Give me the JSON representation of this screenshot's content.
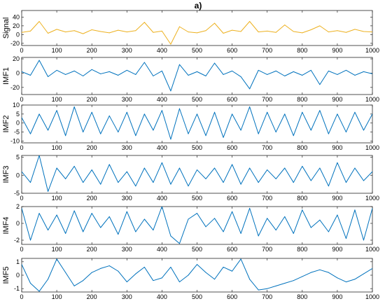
{
  "figure": {
    "title": "a)"
  },
  "chart_data": [
    {
      "type": "line",
      "ylabel": "Signal",
      "color": "#EDB120",
      "xlim": [
        0,
        1000
      ],
      "ylim": [
        -25,
        55
      ],
      "xticks": [
        0,
        100,
        200,
        300,
        400,
        500,
        600,
        700,
        800,
        900,
        1000
      ],
      "yticks": [
        -20,
        0,
        20,
        40
      ],
      "x": [
        0,
        25,
        50,
        75,
        100,
        125,
        150,
        175,
        200,
        225,
        250,
        275,
        300,
        325,
        350,
        375,
        400,
        425,
        450,
        475,
        500,
        525,
        550,
        575,
        600,
        625,
        650,
        675,
        700,
        725,
        750,
        775,
        800,
        825,
        850,
        875,
        900,
        925,
        950,
        975,
        1000
      ],
      "values": [
        5,
        8,
        30,
        3,
        12,
        6,
        9,
        2,
        11,
        7,
        4,
        10,
        6,
        9,
        28,
        5,
        8,
        -22,
        18,
        6,
        4,
        9,
        26,
        3,
        10,
        7,
        30,
        6,
        8,
        5,
        22,
        7,
        4,
        11,
        20,
        6,
        9,
        5,
        12,
        7,
        6
      ],
      "series": [
        {
          "values": [
            5,
            8,
            30,
            3,
            12,
            6,
            9,
            2,
            11,
            7,
            4,
            10,
            6,
            9,
            28,
            5,
            8,
            -22,
            18,
            6,
            4,
            9,
            26,
            3,
            10,
            7,
            30,
            6,
            8,
            5,
            22,
            7,
            4,
            11,
            20,
            6,
            9,
            5,
            12,
            7,
            6
          ]
        }
      ]
    },
    {
      "type": "line",
      "ylabel": "IMF1",
      "color": "#0072BD",
      "xlim": [
        0,
        1000
      ],
      "ylim": [
        -30,
        22
      ],
      "xticks": [
        0,
        100,
        200,
        300,
        400,
        500,
        600,
        700,
        800,
        900,
        1000
      ],
      "yticks": [
        -20,
        0,
        20
      ],
      "x": [
        0,
        25,
        50,
        75,
        100,
        125,
        150,
        175,
        200,
        225,
        250,
        275,
        300,
        325,
        350,
        375,
        400,
        425,
        450,
        475,
        500,
        525,
        550,
        575,
        600,
        625,
        650,
        675,
        700,
        725,
        750,
        775,
        800,
        825,
        850,
        875,
        900,
        925,
        950,
        975,
        1000
      ],
      "values": [
        2,
        -3,
        18,
        -5,
        4,
        -2,
        3,
        -4,
        5,
        -1,
        2,
        -3,
        4,
        -2,
        15,
        -4,
        3,
        -25,
        12,
        -3,
        2,
        -4,
        14,
        -2,
        3,
        -5,
        -22,
        4,
        -2,
        3,
        -4,
        2,
        -3,
        4,
        -16,
        3,
        -2,
        4,
        -3,
        2,
        -1
      ],
      "series": [
        {
          "values": [
            2,
            -3,
            18,
            -5,
            4,
            -2,
            3,
            -4,
            5,
            -1,
            2,
            -3,
            4,
            -2,
            15,
            -4,
            3,
            -25,
            12,
            -3,
            2,
            -4,
            14,
            -2,
            3,
            -5,
            -22,
            4,
            -2,
            3,
            -4,
            2,
            -3,
            4,
            -16,
            3,
            -2,
            4,
            -3,
            2,
            -1
          ]
        }
      ]
    },
    {
      "type": "line",
      "ylabel": "IMF2",
      "color": "#0072BD",
      "xlim": [
        0,
        1000
      ],
      "ylim": [
        -11,
        10
      ],
      "xticks": [
        0,
        100,
        200,
        300,
        400,
        500,
        600,
        700,
        800,
        900,
        1000
      ],
      "yticks": [
        -10,
        -5,
        0,
        5,
        10
      ],
      "x": [
        0,
        25,
        50,
        75,
        100,
        125,
        150,
        175,
        200,
        225,
        250,
        275,
        300,
        325,
        350,
        375,
        400,
        425,
        450,
        475,
        500,
        525,
        550,
        575,
        600,
        625,
        650,
        675,
        700,
        725,
        750,
        775,
        800,
        825,
        850,
        875,
        900,
        925,
        950,
        975,
        1000
      ],
      "values": [
        3,
        -6,
        5,
        -4,
        7,
        -7,
        9,
        -5,
        6,
        -6,
        4,
        -5,
        6,
        -7,
        5,
        -4,
        7,
        -9,
        8,
        -6,
        5,
        -7,
        6,
        -8,
        5,
        -4,
        9,
        -6,
        6,
        -5,
        5,
        -7,
        6,
        -4,
        7,
        -6,
        5,
        -5,
        6,
        -4,
        5
      ],
      "series": [
        {
          "values": [
            3,
            -6,
            5,
            -4,
            7,
            -7,
            9,
            -5,
            6,
            -6,
            4,
            -5,
            6,
            -7,
            5,
            -4,
            7,
            -9,
            8,
            -6,
            5,
            -7,
            6,
            -8,
            5,
            -4,
            9,
            -6,
            6,
            -5,
            5,
            -7,
            6,
            -4,
            7,
            -6,
            5,
            -5,
            6,
            -4,
            5
          ]
        }
      ]
    },
    {
      "type": "line",
      "ylabel": "IMF3",
      "color": "#0072BD",
      "xlim": [
        0,
        1000
      ],
      "ylim": [
        -5,
        5.5
      ],
      "xticks": [
        0,
        100,
        200,
        300,
        400,
        500,
        600,
        700,
        800,
        900,
        1000
      ],
      "yticks": [
        -5,
        0,
        5
      ],
      "x": [
        0,
        25,
        50,
        75,
        100,
        125,
        150,
        175,
        200,
        225,
        250,
        275,
        300,
        325,
        350,
        375,
        400,
        425,
        450,
        475,
        500,
        525,
        550,
        575,
        600,
        625,
        650,
        675,
        700,
        725,
        750,
        775,
        800,
        825,
        850,
        875,
        900,
        925,
        950,
        975,
        1000
      ],
      "values": [
        1,
        -2,
        5.5,
        -4.5,
        2,
        -1,
        2.5,
        -2,
        1.5,
        -2.5,
        3,
        -2,
        1,
        -3,
        2,
        -2,
        3.5,
        -2.5,
        2,
        -3,
        1.5,
        -1,
        2,
        -2,
        3,
        -2.5,
        2,
        -2,
        1.5,
        -1,
        2,
        -2,
        2.5,
        -1.5,
        2,
        -3,
        3.5,
        -2,
        2,
        -1.5,
        1
      ],
      "series": [
        {
          "values": [
            1,
            -2,
            5.5,
            -4.5,
            2,
            -1,
            2.5,
            -2,
            1.5,
            -2.5,
            3,
            -2,
            1,
            -3,
            2,
            -2,
            3.5,
            -2.5,
            2,
            -3,
            1.5,
            -1,
            2,
            -2,
            3,
            -2.5,
            2,
            -2,
            1.5,
            -1,
            2,
            -2,
            2.5,
            -1.5,
            2,
            -3,
            3.5,
            -2,
            2,
            -1.5,
            1
          ]
        }
      ]
    },
    {
      "type": "line",
      "ylabel": "IMF4",
      "color": "#0072BD",
      "xlim": [
        0,
        1000
      ],
      "ylim": [
        -2.5,
        2
      ],
      "xticks": [
        0,
        100,
        200,
        300,
        400,
        500,
        600,
        700,
        800,
        900,
        1000
      ],
      "yticks": [
        -2,
        0,
        2
      ],
      "x": [
        0,
        25,
        50,
        75,
        100,
        125,
        150,
        175,
        200,
        225,
        250,
        275,
        300,
        325,
        350,
        375,
        400,
        425,
        450,
        475,
        500,
        525,
        550,
        575,
        600,
        625,
        650,
        675,
        700,
        725,
        750,
        775,
        800,
        825,
        850,
        875,
        900,
        925,
        950,
        975,
        1000
      ],
      "values": [
        1.8,
        -2,
        1.2,
        -0.8,
        1,
        -1.2,
        1.5,
        -1,
        1.2,
        -0.5,
        0.8,
        -1.3,
        1.4,
        -1,
        0.5,
        -0.8,
        2,
        -1.5,
        -2.4,
        0.5,
        1.2,
        -0.4,
        0.6,
        -1,
        1.4,
        -1.2,
        1.8,
        -1.5,
        0.6,
        -0.8,
        0.8,
        -1.2,
        1.6,
        -0.5,
        0.4,
        -1,
        1,
        -1.8,
        1.6,
        -2,
        1.8
      ],
      "series": [
        {
          "values": [
            1.8,
            -2,
            1.2,
            -0.8,
            1,
            -1.2,
            1.5,
            -1,
            1.2,
            -0.5,
            0.8,
            -1.3,
            1.4,
            -1,
            0.5,
            -0.8,
            2,
            -1.5,
            -2.4,
            0.5,
            1.2,
            -0.4,
            0.6,
            -1,
            1.4,
            -1.2,
            1.8,
            -1.5,
            0.6,
            -0.8,
            0.8,
            -1.2,
            1.6,
            -0.5,
            0.4,
            -1,
            1,
            -1.8,
            1.6,
            -2,
            1.8
          ]
        }
      ]
    },
    {
      "type": "line",
      "ylabel": "IMF5",
      "color": "#0072BD",
      "xlim": [
        0,
        1000
      ],
      "ylim": [
        -1.25,
        1.25
      ],
      "xticks": [
        0,
        100,
        200,
        300,
        400,
        500,
        600,
        700,
        800,
        900,
        1000
      ],
      "yticks": [
        -1,
        0,
        1
      ],
      "x": [
        0,
        25,
        50,
        75,
        100,
        125,
        150,
        175,
        200,
        225,
        250,
        275,
        300,
        325,
        350,
        375,
        400,
        425,
        450,
        475,
        500,
        525,
        550,
        575,
        600,
        625,
        650,
        675,
        700,
        725,
        750,
        775,
        800,
        825,
        850,
        875,
        900,
        925,
        950,
        975,
        1000
      ],
      "values": [
        0.8,
        -0.6,
        -1.2,
        -0.3,
        1.2,
        0.2,
        -0.8,
        -0.4,
        0.2,
        0.5,
        0.7,
        0.3,
        -0.5,
        0.1,
        0.6,
        -0.4,
        -0.2,
        0.6,
        -0.5,
        0,
        0.8,
        0.2,
        -0.3,
        0.6,
        0.3,
        1.2,
        -0.3,
        -1.1,
        -1,
        -0.8,
        -0.6,
        -0.4,
        -0.1,
        0.2,
        0.4,
        0.2,
        -0.2,
        -0.5,
        -0.3,
        0.1,
        0.5
      ],
      "series": [
        {
          "values": [
            0.8,
            -0.6,
            -1.2,
            -0.3,
            1.2,
            0.2,
            -0.8,
            -0.4,
            0.2,
            0.5,
            0.7,
            0.3,
            -0.5,
            0.1,
            0.6,
            -0.4,
            -0.2,
            0.6,
            -0.5,
            0,
            0.8,
            0.2,
            -0.3,
            0.6,
            0.3,
            1.2,
            -0.3,
            -1.1,
            -1,
            -0.8,
            -0.6,
            -0.4,
            -0.1,
            0.2,
            0.4,
            0.2,
            -0.2,
            -0.5,
            -0.3,
            0.1,
            0.5
          ]
        }
      ]
    }
  ]
}
